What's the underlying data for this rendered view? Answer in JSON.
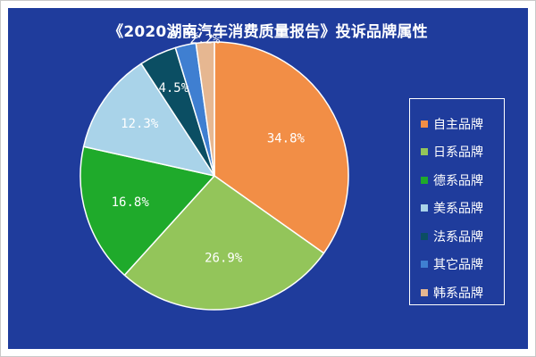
{
  "title": "《2020湖南汽车消费质量报告》投诉品牌属性",
  "chart_data": {
    "type": "pie",
    "title": "《2020湖南汽车消费质量报告》投诉品牌属性",
    "categories": [
      "自主品牌",
      "日系品牌",
      "德系品牌",
      "美系品牌",
      "法系品牌",
      "其它品牌",
      "韩系品牌"
    ],
    "values": [
      34.8,
      26.9,
      16.8,
      12.3,
      4.5,
      2.5,
      2.2
    ],
    "labels": [
      "34.8%",
      "26.9%",
      "16.8%",
      "12.3%",
      "4.5%",
      "2.5%",
      "2.2%"
    ],
    "colors": [
      "#f28e46",
      "#93c55a",
      "#1faa2b",
      "#a9d3e9",
      "#0b4e63",
      "#3f7fd1",
      "#e6b791"
    ],
    "start": "12 o'clock",
    "direction": "clockwise",
    "legend_position": "right"
  },
  "legend": {
    "items": [
      {
        "label": "自主品牌",
        "color": "#f28e46"
      },
      {
        "label": "日系品牌",
        "color": "#93c55a"
      },
      {
        "label": "德系品牌",
        "color": "#1faa2b"
      },
      {
        "label": "美系品牌",
        "color": "#a9d3e9"
      },
      {
        "label": "法系品牌",
        "color": "#0b4e63"
      },
      {
        "label": "其它品牌",
        "color": "#3f7fd1"
      },
      {
        "label": "韩系品牌",
        "color": "#e6b791"
      }
    ]
  }
}
